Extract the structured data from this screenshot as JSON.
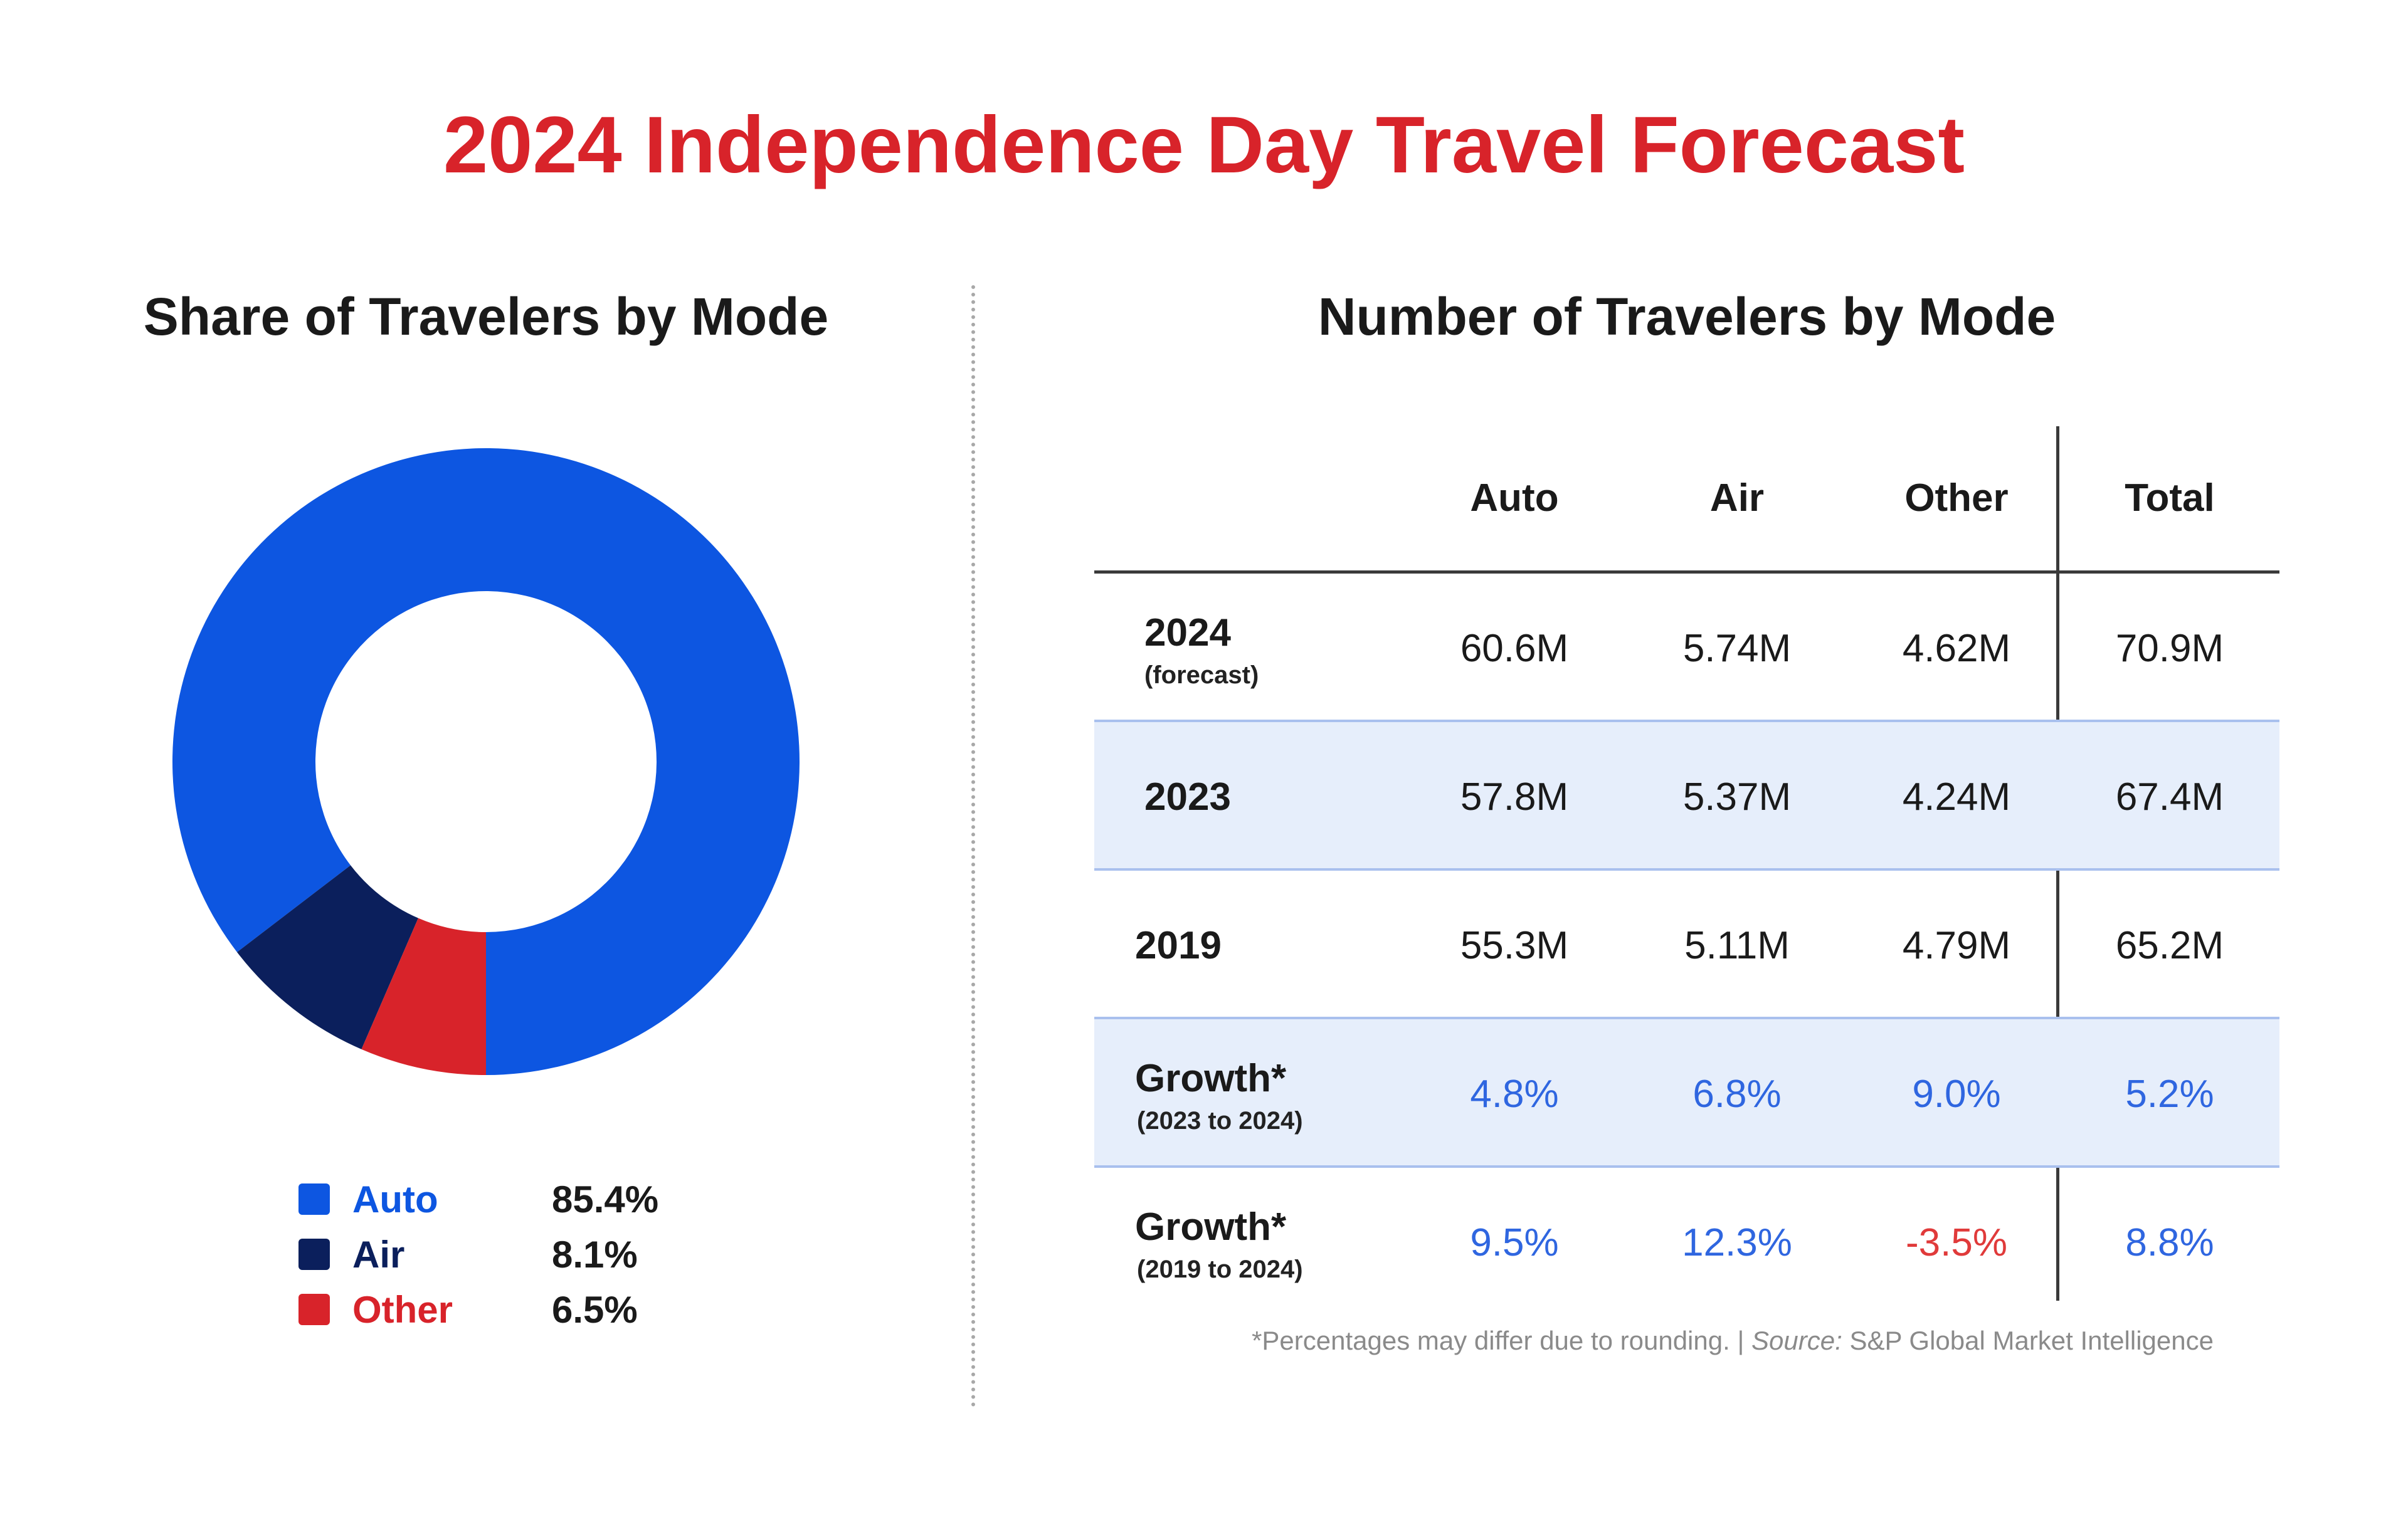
{
  "title": "2024 Independence Day Travel Forecast",
  "left_subtitle": "Share of Travelers by Mode",
  "right_subtitle": "Number of Travelers by Mode",
  "colors": {
    "auto": "#0d56e1",
    "air": "#0b1f5c",
    "other": "#d8232a",
    "title": "#d8232a"
  },
  "chart_data": [
    {
      "type": "pie",
      "title": "Share of Travelers by Mode",
      "donut": true,
      "categories": [
        "Auto",
        "Air",
        "Other"
      ],
      "values": [
        85.4,
        8.1,
        6.5
      ],
      "labels": [
        "85.4%",
        "8.1%",
        "6.5%"
      ],
      "colors": [
        "#0d56e1",
        "#0b1f5c",
        "#d8232a"
      ],
      "legend": "bottom"
    },
    {
      "type": "table",
      "title": "Number of Travelers by Mode",
      "columns": [
        "Auto",
        "Air",
        "Other",
        "Total"
      ],
      "rows": [
        {
          "label": "2024",
          "sublabel": "(forecast)",
          "values": [
            "60.6M",
            "5.74M",
            "4.62M",
            "70.9M"
          ],
          "shaded": false
        },
        {
          "label": "2023",
          "sublabel": "",
          "values": [
            "57.8M",
            "5.37M",
            "4.24M",
            "67.4M"
          ],
          "shaded": true
        },
        {
          "label": "2019",
          "sublabel": "",
          "values": [
            "55.3M",
            "5.11M",
            "4.79M",
            "65.2M"
          ],
          "shaded": false
        },
        {
          "label": "Growth*",
          "sublabel": "(2023 to 2024)",
          "values": [
            "4.8%",
            "6.8%",
            "9.0%",
            "5.2%"
          ],
          "shaded": true
        },
        {
          "label": "Growth*",
          "sublabel": "(2019 to 2024)",
          "values": [
            "9.5%",
            "12.3%",
            "-3.5%",
            "8.8%"
          ],
          "shaded": false
        }
      ]
    }
  ],
  "footnote": {
    "prefix": "*Percentages may differ due to rounding. | ",
    "source_label": "Source:",
    "source_text": " S&P Global Market Intelligence"
  }
}
